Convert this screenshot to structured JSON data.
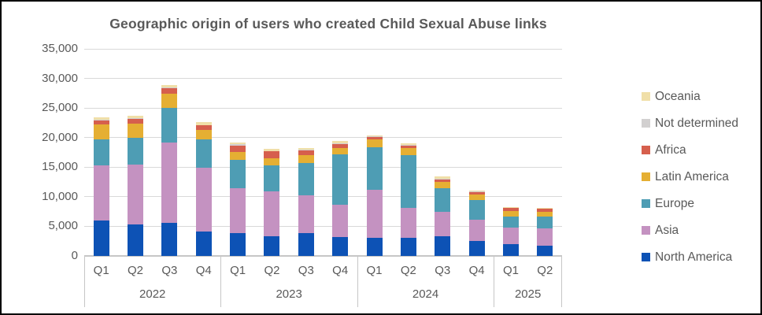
{
  "title": "Geographic origin of users who created Child Sexual Abuse links",
  "chart_data": {
    "type": "bar",
    "stacked": true,
    "title": "Geographic origin of users who created Child Sexual Abuse links",
    "grid": true,
    "legend_position": "right",
    "ylim": [
      0,
      35000
    ],
    "ytick_step": 5000,
    "ytick_labels": [
      "0",
      "5,000",
      "10,000",
      "15,000",
      "20,000",
      "25,000",
      "30,000",
      "35,000"
    ],
    "quarters": [
      "Q1",
      "Q2",
      "Q3",
      "Q4",
      "Q1",
      "Q2",
      "Q3",
      "Q4",
      "Q1",
      "Q2",
      "Q3",
      "Q4",
      "Q1",
      "Q2"
    ],
    "year_groups": [
      {
        "label": "2022",
        "quarters": 4
      },
      {
        "label": "2023",
        "quarters": 4
      },
      {
        "label": "2024",
        "quarters": 4
      },
      {
        "label": "2025",
        "quarters": 2
      }
    ],
    "series": [
      {
        "name": "North America",
        "color": "#0d52b5",
        "values": [
          6000,
          5300,
          5600,
          4100,
          3900,
          3300,
          3900,
          3200,
          3100,
          3100,
          3300,
          2500,
          2000,
          1700
        ]
      },
      {
        "name": "Asia",
        "color": "#c492c1",
        "values": [
          9300,
          10100,
          13600,
          10800,
          7500,
          7600,
          6400,
          5400,
          8100,
          5000,
          4100,
          3600,
          2800,
          2900
        ]
      },
      {
        "name": "Europe",
        "color": "#4e9db4",
        "values": [
          4400,
          4500,
          5800,
          4800,
          4900,
          4400,
          5400,
          8600,
          7200,
          8900,
          4100,
          3300,
          1900,
          2000
        ]
      },
      {
        "name": "Latin America",
        "color": "#e5af33",
        "values": [
          2500,
          2400,
          2400,
          1600,
          1300,
          1200,
          1300,
          1100,
          1250,
          1300,
          1000,
          1000,
          900,
          900
        ]
      },
      {
        "name": "Africa",
        "color": "#d65f4d",
        "values": [
          700,
          800,
          1000,
          750,
          1100,
          1150,
          900,
          650,
          500,
          400,
          450,
          450,
          500,
          450
        ]
      },
      {
        "name": "Not determined",
        "color": "#d2d0d0",
        "values": [
          150,
          150,
          150,
          100,
          150,
          100,
          100,
          100,
          100,
          100,
          100,
          100,
          50,
          50
        ]
      },
      {
        "name": "Oceania",
        "color": "#f0dfa8",
        "values": [
          350,
          400,
          350,
          500,
          300,
          300,
          260,
          350,
          150,
          300,
          350,
          150,
          100,
          100
        ]
      }
    ]
  }
}
